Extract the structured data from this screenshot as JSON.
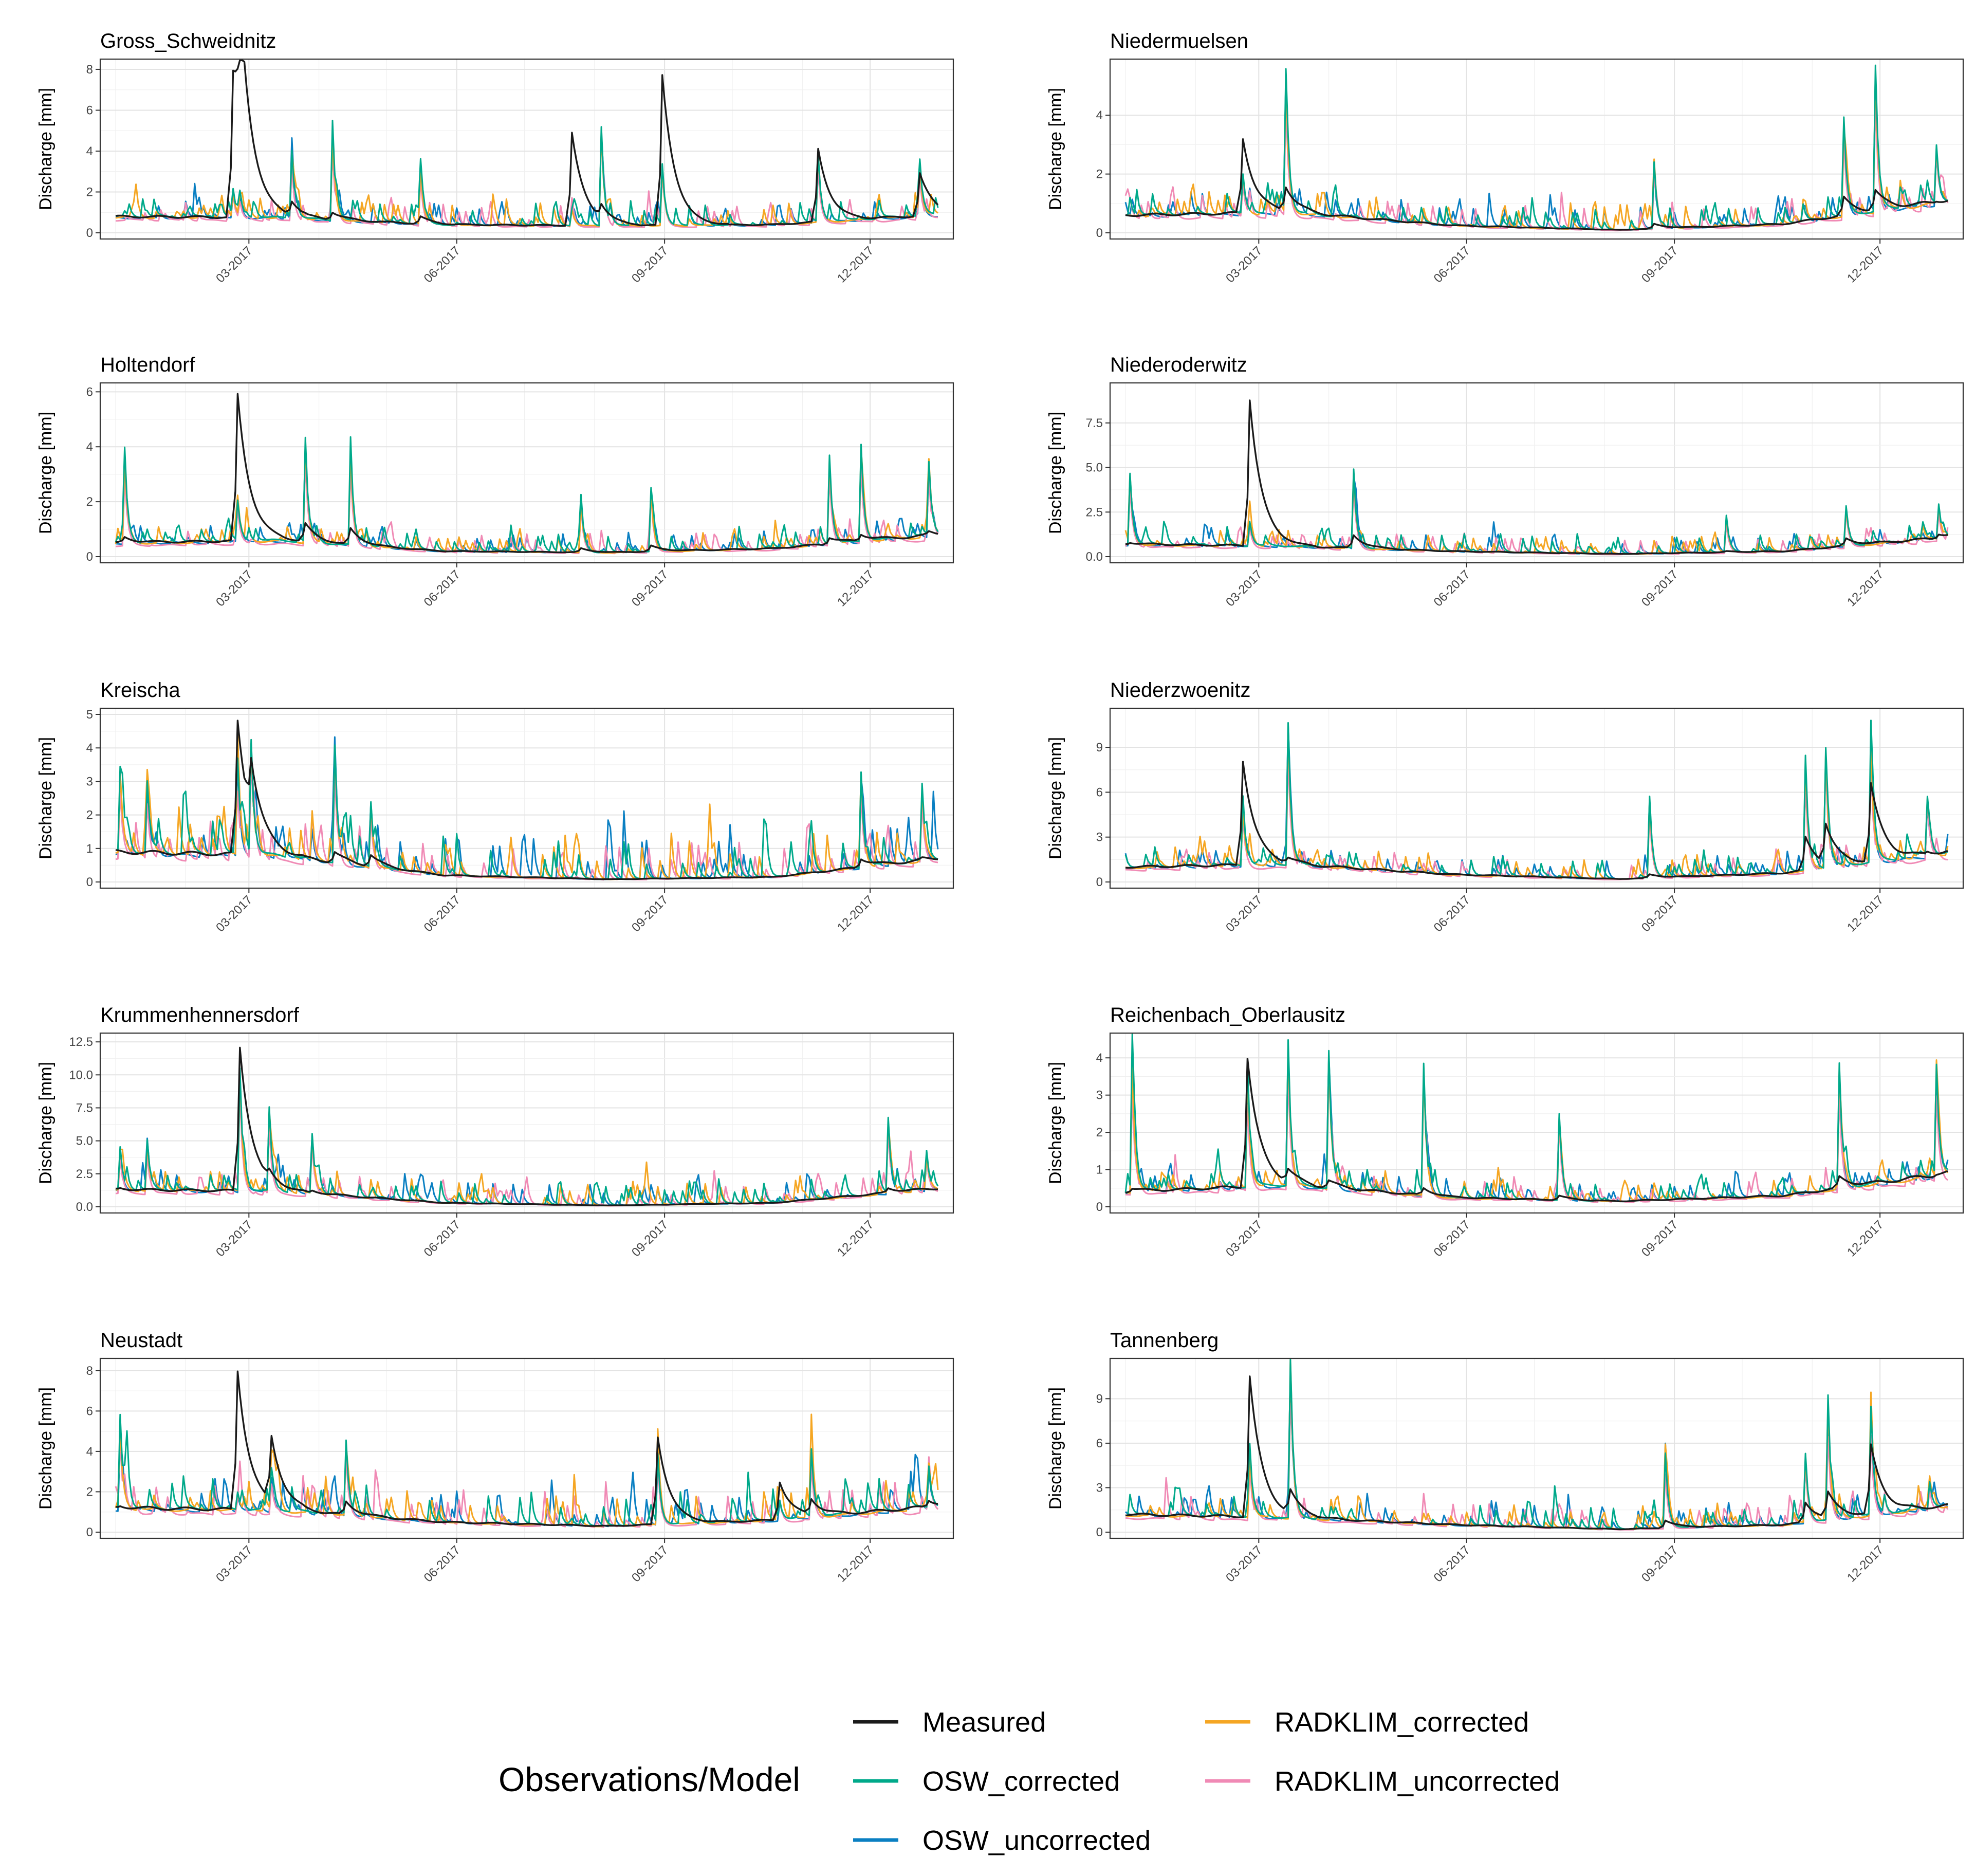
{
  "legend": {
    "title": "Observations/Model",
    "items": [
      {
        "label": "Measured",
        "color": "#1a1a1a"
      },
      {
        "label": "OSW_corrected",
        "color": "#00a98a"
      },
      {
        "label": "OSW_uncorrected",
        "color": "#0a7fc2"
      },
      {
        "label": "RADKLIM_corrected",
        "color": "#f5a623"
      },
      {
        "label": "RADKLIM_uncorrected",
        "color": "#f08ab5"
      }
    ]
  },
  "chart_data": [
    {
      "type": "line",
      "title": "Gross_Schweidnitz",
      "ylabel": "Discharge [mm]",
      "x_ticks": [
        "03-2017",
        "06-2017",
        "09-2017",
        "12-2017"
      ],
      "x_range": [
        "2017-01-01",
        "2017-12-31"
      ],
      "y_ticks": [
        0,
        2,
        4,
        6,
        8
      ],
      "ylim": [
        0,
        8.2
      ],
      "grid": true,
      "baseline": [
        0.8,
        0.75,
        0.4,
        0.35,
        0.4,
        0.9
      ],
      "peaks": [
        {
          "date": "2017-02-22",
          "measured": 7.9,
          "model": 2.0
        },
        {
          "date": "2017-02-25",
          "measured": 7.5,
          "model": 1.8
        },
        {
          "date": "2017-03-20",
          "measured": 1.4,
          "model": 4.0
        },
        {
          "date": "2017-04-07",
          "measured": 1.0,
          "model": 4.6
        },
        {
          "date": "2017-05-16",
          "measured": 0.8,
          "model": 3.3
        },
        {
          "date": "2017-07-22",
          "measured": 4.9,
          "model": 1.2
        },
        {
          "date": "2017-08-04",
          "measured": 1.0,
          "model": 5.2
        },
        {
          "date": "2017-08-31",
          "measured": 7.7,
          "model": 3.3
        },
        {
          "date": "2017-11-08",
          "measured": 4.1,
          "model": 3.8
        },
        {
          "date": "2017-12-23",
          "measured": 2.9,
          "model": 3.2
        }
      ]
    },
    {
      "type": "line",
      "title": "Holtendorf",
      "ylabel": "Discharge [mm]",
      "x_ticks": [
        "03-2017",
        "06-2017",
        "09-2017",
        "12-2017"
      ],
      "x_range": [
        "2017-01-01",
        "2017-12-31"
      ],
      "y_ticks": [
        0,
        2,
        4,
        6
      ],
      "ylim": [
        0,
        6.1
      ],
      "grid": true,
      "baseline": [
        0.5,
        0.6,
        0.2,
        0.15,
        0.3,
        0.8
      ],
      "peaks": [
        {
          "date": "2017-01-05",
          "measured": 0.7,
          "model": 3.7
        },
        {
          "date": "2017-02-24",
          "measured": 5.9,
          "model": 2.0
        },
        {
          "date": "2017-03-26",
          "measured": 1.2,
          "model": 4.3
        },
        {
          "date": "2017-04-15",
          "measured": 1.0,
          "model": 4.0
        },
        {
          "date": "2017-07-26",
          "measured": 0.3,
          "model": 2.0
        },
        {
          "date": "2017-08-26",
          "measured": 0.4,
          "model": 2.5
        },
        {
          "date": "2017-11-13",
          "measured": 0.7,
          "model": 3.7
        },
        {
          "date": "2017-11-27",
          "measured": 0.8,
          "model": 4.1
        },
        {
          "date": "2017-12-27",
          "measured": 0.9,
          "model": 3.4
        }
      ]
    },
    {
      "type": "line",
      "title": "Kreischa",
      "ylabel": "Discharge [mm]",
      "x_ticks": [
        "03-2017",
        "06-2017",
        "09-2017",
        "12-2017"
      ],
      "x_range": [
        "2017-01-01",
        "2017-12-31"
      ],
      "y_ticks": [
        0,
        1,
        2,
        3,
        4,
        5
      ],
      "ylim": [
        0,
        5.0
      ],
      "grid": true,
      "baseline": [
        0.9,
        0.8,
        0.2,
        0.08,
        0.15,
        0.7
      ],
      "peaks": [
        {
          "date": "2017-01-03",
          "measured": 0.8,
          "model": 3.4
        },
        {
          "date": "2017-01-15",
          "measured": 0.7,
          "model": 3.0
        },
        {
          "date": "2017-02-24",
          "measured": 4.8,
          "model": 3.2
        },
        {
          "date": "2017-03-02",
          "measured": 2.4,
          "model": 4.2
        },
        {
          "date": "2017-04-08",
          "measured": 0.9,
          "model": 4.1
        },
        {
          "date": "2017-04-24",
          "measured": 0.8,
          "model": 2.4
        },
        {
          "date": "2017-11-27",
          "measured": 0.7,
          "model": 3.3
        },
        {
          "date": "2017-12-24",
          "measured": 0.7,
          "model": 2.9
        }
      ]
    },
    {
      "type": "line",
      "title": "Krummenhennersdorf",
      "ylabel": "Discharge [mm]",
      "x_ticks": [
        "03-2017",
        "06-2017",
        "09-2017",
        "12-2017"
      ],
      "x_range": [
        "2017-01-01",
        "2017-12-31"
      ],
      "y_ticks": [
        0.0,
        2.5,
        5.0,
        7.5,
        10.0,
        12.5
      ],
      "ylim": [
        0,
        12.7
      ],
      "grid": true,
      "baseline": [
        1.3,
        1.2,
        0.3,
        0.1,
        0.3,
        1.4
      ],
      "peaks": [
        {
          "date": "2017-01-03",
          "measured": 1.4,
          "model": 4.5
        },
        {
          "date": "2017-01-15",
          "measured": 1.2,
          "model": 5.0
        },
        {
          "date": "2017-02-25",
          "measured": 12.1,
          "model": 10.5
        },
        {
          "date": "2017-03-10",
          "measured": 1.8,
          "model": 7.5
        },
        {
          "date": "2017-03-29",
          "measured": 1.2,
          "model": 5.5
        },
        {
          "date": "2017-12-09",
          "measured": 1.4,
          "model": 6.7
        },
        {
          "date": "2017-12-26",
          "measured": 1.3,
          "model": 4.0
        }
      ]
    },
    {
      "type": "line",
      "title": "Neustadt",
      "ylabel": "Discharge [mm]",
      "x_ticks": [
        "03-2017",
        "06-2017",
        "09-2017",
        "12-2017"
      ],
      "x_range": [
        "2017-01-01",
        "2017-12-31"
      ],
      "y_ticks": [
        0,
        2,
        4,
        6,
        8
      ],
      "ylim": [
        0,
        8.3
      ],
      "grid": true,
      "baseline": [
        1.2,
        1.1,
        0.5,
        0.3,
        0.6,
        1.3
      ],
      "peaks": [
        {
          "date": "2017-01-03",
          "measured": 1.3,
          "model": 5.0
        },
        {
          "date": "2017-02-24",
          "measured": 8.0,
          "model": 2.0
        },
        {
          "date": "2017-03-11",
          "measured": 4.3,
          "model": 3.0
        },
        {
          "date": "2017-04-13",
          "measured": 1.5,
          "model": 4.5
        },
        {
          "date": "2017-08-29",
          "measured": 4.7,
          "model": 3.8
        },
        {
          "date": "2017-10-22",
          "measured": 2.5,
          "model": 1.5
        },
        {
          "date": "2017-11-05",
          "measured": 1.5,
          "model": 4.1
        },
        {
          "date": "2017-12-27",
          "measured": 1.6,
          "model": 3.3
        }
      ]
    },
    {
      "type": "line",
      "title": "Niedermuelsen",
      "ylabel": "Discharge [mm]",
      "x_ticks": [
        "03-2017",
        "06-2017",
        "09-2017",
        "12-2017"
      ],
      "x_range": [
        "2017-01-01",
        "2017-12-31"
      ],
      "y_ticks": [
        0,
        2,
        4
      ],
      "ylim": [
        0,
        5.7
      ],
      "grid": true,
      "baseline": [
        0.6,
        0.7,
        0.25,
        0.1,
        0.3,
        1.1
      ],
      "peaks": [
        {
          "date": "2017-02-22",
          "measured": 3.2,
          "model": 2.0
        },
        {
          "date": "2017-03-13",
          "measured": 1.5,
          "model": 5.5
        },
        {
          "date": "2017-08-23",
          "measured": 0.3,
          "model": 2.4
        },
        {
          "date": "2017-11-15",
          "measured": 1.2,
          "model": 3.8
        },
        {
          "date": "2017-11-29",
          "measured": 1.4,
          "model": 5.7
        },
        {
          "date": "2017-12-26",
          "measured": 1.1,
          "model": 3.0
        }
      ]
    },
    {
      "type": "line",
      "title": "Niederoderwitz",
      "ylabel": "Discharge [mm]",
      "x_ticks": [
        "03-2017",
        "06-2017",
        "09-2017",
        "12-2017"
      ],
      "x_range": [
        "2017-01-01",
        "2017-12-31"
      ],
      "y_ticks": [
        0.0,
        2.5,
        5.0,
        7.5
      ],
      "ylim": [
        0,
        9.4
      ],
      "grid": true,
      "baseline": [
        0.7,
        0.6,
        0.3,
        0.15,
        0.3,
        1.1
      ],
      "peaks": [
        {
          "date": "2017-01-03",
          "measured": 0.8,
          "model": 4.7
        },
        {
          "date": "2017-02-25",
          "measured": 8.8,
          "model": 2.0
        },
        {
          "date": "2017-04-12",
          "measured": 1.2,
          "model": 4.9
        },
        {
          "date": "2017-09-24",
          "measured": 0.3,
          "model": 2.3
        },
        {
          "date": "2017-11-16",
          "measured": 1.0,
          "model": 2.8
        },
        {
          "date": "2017-12-27",
          "measured": 1.3,
          "model": 3.0
        }
      ]
    },
    {
      "type": "line",
      "title": "Niederzwoenitz",
      "ylabel": "Discharge [mm]",
      "x_ticks": [
        "03-2017",
        "06-2017",
        "09-2017",
        "12-2017"
      ],
      "x_range": [
        "2017-01-01",
        "2017-12-31"
      ],
      "y_ticks": [
        0,
        3,
        6,
        9
      ],
      "ylim": [
        0,
        11.2
      ],
      "grid": true,
      "baseline": [
        1.0,
        1.2,
        0.5,
        0.2,
        0.6,
        2.0
      ],
      "peaks": [
        {
          "date": "2017-02-22",
          "measured": 8.1,
          "model": 5.0
        },
        {
          "date": "2017-03-14",
          "measured": 1.5,
          "model": 10.7
        },
        {
          "date": "2017-08-21",
          "measured": 0.5,
          "model": 5.7
        },
        {
          "date": "2017-10-29",
          "measured": 3.0,
          "model": 8.2
        },
        {
          "date": "2017-11-07",
          "measured": 3.5,
          "model": 9.0
        },
        {
          "date": "2017-11-27",
          "measured": 6.5,
          "model": 9.5
        },
        {
          "date": "2017-12-22",
          "measured": 2.0,
          "model": 5.7
        }
      ]
    },
    {
      "type": "line",
      "title": "Reichenbach_Oberlausitz",
      "ylabel": "Discharge [mm]",
      "x_ticks": [
        "03-2017",
        "06-2017",
        "09-2017",
        "12-2017"
      ],
      "x_range": [
        "2017-01-01",
        "2017-12-31"
      ],
      "y_ticks": [
        0,
        1,
        2,
        3,
        4
      ],
      "ylim": [
        0,
        4.5
      ],
      "grid": true,
      "baseline": [
        0.4,
        0.6,
        0.25,
        0.15,
        0.3,
        0.9
      ],
      "peaks": [
        {
          "date": "2017-01-04",
          "measured": 0.5,
          "model": 3.9
        },
        {
          "date": "2017-02-24",
          "measured": 4.0,
          "model": 3.5
        },
        {
          "date": "2017-03-14",
          "measured": 0.9,
          "model": 4.5
        },
        {
          "date": "2017-04-01",
          "measured": 0.7,
          "model": 4.2
        },
        {
          "date": "2017-05-13",
          "measured": 0.5,
          "model": 3.8
        },
        {
          "date": "2017-07-12",
          "measured": 0.3,
          "model": 2.5
        },
        {
          "date": "2017-11-13",
          "measured": 0.8,
          "model": 3.8
        },
        {
          "date": "2017-12-26",
          "measured": 0.9,
          "model": 3.8
        }
      ]
    },
    {
      "type": "line",
      "title": "Tannenberg",
      "ylabel": "Discharge [mm]",
      "x_ticks": [
        "03-2017",
        "06-2017",
        "09-2017",
        "12-2017"
      ],
      "x_range": [
        "2017-01-01",
        "2017-12-31"
      ],
      "y_ticks": [
        0,
        3,
        6,
        9
      ],
      "ylim": [
        0,
        11.3
      ],
      "grid": true,
      "baseline": [
        1.2,
        1.0,
        0.5,
        0.2,
        0.5,
        1.8
      ],
      "peaks": [
        {
          "date": "2017-02-25",
          "measured": 10.5,
          "model": 5.5
        },
        {
          "date": "2017-03-15",
          "measured": 2.5,
          "model": 10.8
        },
        {
          "date": "2017-08-28",
          "measured": 0.8,
          "model": 5.0
        },
        {
          "date": "2017-10-29",
          "measured": 2.0,
          "model": 5.2
        },
        {
          "date": "2017-11-08",
          "measured": 2.5,
          "model": 8.3
        },
        {
          "date": "2017-11-27",
          "measured": 5.8,
          "model": 8.4
        },
        {
          "date": "2017-12-23",
          "measured": 1.5,
          "model": 3.5
        }
      ]
    }
  ]
}
